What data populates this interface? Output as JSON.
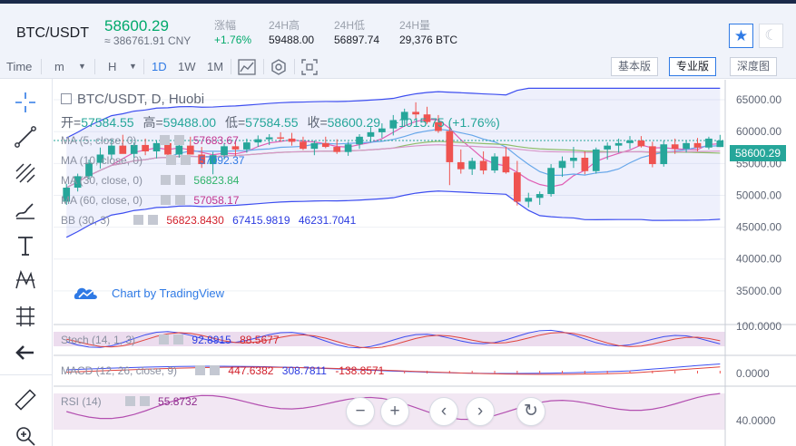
{
  "header": {
    "pair": "BTC/USDT",
    "last_price": "58600.29",
    "cny_price": "≈ 386761.91 CNY",
    "stats": [
      {
        "label": "涨幅",
        "value": "+1.76%",
        "color": "#00a96b"
      },
      {
        "label": "24H高",
        "value": "59488.00",
        "color": "#1a1d26"
      },
      {
        "label": "24H低",
        "value": "56897.74",
        "color": "#1a1d26"
      },
      {
        "label": "24H量",
        "value": "29,376 BTC",
        "color": "#1a1d26"
      }
    ]
  },
  "toolbar": {
    "time_label": "Time",
    "m_label": "m",
    "h_label": "H",
    "intervals": [
      "1D",
      "1W",
      "1M"
    ],
    "active_interval": "1D",
    "versions": [
      "基本版",
      "专业版",
      "深度图"
    ],
    "active_version": "专业版"
  },
  "chart": {
    "legend_title": "BTC/USDT, D, Huobi",
    "ohlc": {
      "open_label": "开=",
      "open": "57584.55",
      "high_label": "高=",
      "high": "59488.00",
      "low_label": "低=",
      "low": "57584.55",
      "close_label": "收=",
      "close": "58600.29",
      "change": "+1015.75 (+1.76%)"
    },
    "indicators": [
      {
        "name": "MA (5, close, 0)",
        "values": [
          "57683.67"
        ],
        "colors": [
          "#c0338f"
        ]
      },
      {
        "name": "MA (10, close, 0)",
        "values": [
          "57092.37"
        ],
        "colors": [
          "#2f7ae5"
        ]
      },
      {
        "name": "MA (30, close, 0)",
        "values": [
          "56823.84"
        ],
        "colors": [
          "#2fb36a"
        ]
      },
      {
        "name": "MA (60, close, 0)",
        "values": [
          "57058.17"
        ],
        "colors": [
          "#c0338f"
        ]
      },
      {
        "name": "BB (30, 3)",
        "values": [
          "56823.8430",
          "67415.9819",
          "46231.7041"
        ],
        "colors": [
          "#d11f2a",
          "#2b3be0",
          "#2b3be0"
        ]
      }
    ],
    "brand": "Chart by TradingView",
    "price_tag": "58600.29",
    "y_axis": [
      "65000.00",
      "60000.00",
      "55000.00",
      "50000.00",
      "45000.00",
      "40000.00",
      "35000.00"
    ],
    "stoch": {
      "name": "Stoch (14, 1, 3)",
      "values": [
        "92.8915",
        "88.5677"
      ],
      "colors": [
        "#2b3be0",
        "#d11f2a"
      ],
      "axis": "100.0000"
    },
    "macd": {
      "name": "MACD (12, 26, close, 9)",
      "values": [
        "447.6382",
        "308.7811",
        "-138.8571"
      ],
      "colors": [
        "#d11f2a",
        "#2b3be0",
        "#d11f2a"
      ],
      "axis": "0.0000"
    },
    "rsi": {
      "name": "RSI (14)",
      "values": [
        "55.8732"
      ],
      "colors": [
        "#8e2a8c"
      ],
      "axis": "40.0000"
    }
  },
  "chart_data": {
    "type": "candlestick",
    "y_range": [
      30000,
      67000
    ],
    "candles": [
      [
        49000,
        51800,
        48500,
        51200
      ],
      [
        51200,
        53400,
        50600,
        53000
      ],
      [
        53000,
        55600,
        52500,
        55100
      ],
      [
        55100,
        57500,
        54200,
        56400
      ],
      [
        56400,
        58800,
        55600,
        57800
      ],
      [
        57800,
        59500,
        56800,
        56500
      ],
      [
        56500,
        58300,
        55900,
        57900
      ],
      [
        57900,
        58900,
        56300,
        56900
      ],
      [
        56900,
        58600,
        55800,
        58200
      ],
      [
        58200,
        59100,
        55600,
        56400
      ],
      [
        56400,
        58500,
        55900,
        57800
      ],
      [
        57800,
        59200,
        56500,
        56400
      ],
      [
        56400,
        57600,
        54300,
        54900
      ],
      [
        54900,
        56800,
        53300,
        56300
      ],
      [
        56300,
        58200,
        55600,
        57700
      ],
      [
        57700,
        58500,
        56200,
        57200
      ],
      [
        57200,
        58900,
        56700,
        58300
      ],
      [
        58300,
        59400,
        57600,
        58800
      ],
      [
        58800,
        59600,
        57900,
        59100
      ],
      [
        59100,
        59900,
        58400,
        58900
      ],
      [
        58900,
        59800,
        57800,
        58400
      ],
      [
        58400,
        59200,
        57100,
        57300
      ],
      [
        57300,
        58600,
        56300,
        58200
      ],
      [
        58200,
        59200,
        57400,
        57600
      ],
      [
        57600,
        58800,
        56500,
        56800
      ],
      [
        56800,
        58400,
        56200,
        58000
      ],
      [
        58000,
        59600,
        57300,
        59200
      ],
      [
        59200,
        60700,
        58300,
        59900
      ],
      [
        59900,
        61300,
        59000,
        60500
      ],
      [
        60500,
        62600,
        59400,
        61800
      ],
      [
        61800,
        63600,
        60900,
        63100
      ],
      [
        63100,
        64600,
        62000,
        62700
      ],
      [
        62700,
        63900,
        61200,
        61500
      ],
      [
        61500,
        62600,
        59800,
        60100
      ],
      [
        60100,
        61200,
        51600,
        55200
      ],
      [
        55200,
        57200,
        53400,
        54100
      ],
      [
        54100,
        55900,
        53200,
        55400
      ],
      [
        55400,
        56900,
        53300,
        53900
      ],
      [
        53900,
        56600,
        53500,
        56100
      ],
      [
        56100,
        57600,
        53400,
        53600
      ],
      [
        53600,
        55400,
        48400,
        49000
      ],
      [
        49000,
        50400,
        48100,
        49600
      ],
      [
        49600,
        50600,
        48500,
        50200
      ],
      [
        50200,
        54900,
        49800,
        54300
      ],
      [
        54300,
        56100,
        52900,
        55400
      ],
      [
        55400,
        57600,
        54300,
        55900
      ],
      [
        55900,
        56900,
        53300,
        53800
      ],
      [
        53800,
        57500,
        53400,
        57200
      ],
      [
        57200,
        58300,
        55600,
        57800
      ],
      [
        57800,
        58900,
        56700,
        58200
      ],
      [
        58200,
        59300,
        57300,
        58600
      ],
      [
        58600,
        59300,
        57500,
        57700
      ],
      [
        57700,
        58400,
        54400,
        54900
      ],
      [
        54900,
        58600,
        54500,
        58000
      ],
      [
        58000,
        58900,
        56500,
        57300
      ],
      [
        57300,
        58600,
        56700,
        58200
      ],
      [
        58200,
        59000,
        56900,
        57500
      ],
      [
        57500,
        59200,
        57200,
        58900
      ],
      [
        57584,
        59488,
        57584,
        58600
      ]
    ]
  }
}
